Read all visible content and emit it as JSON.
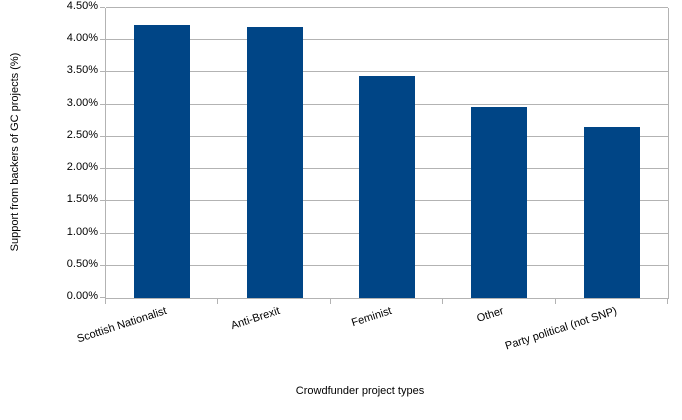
{
  "chart_data": {
    "type": "bar",
    "title": "",
    "xlabel": "Crowdfunder project types",
    "ylabel": "Support from backers of GC projects (%)",
    "categories": [
      "Scottish Nationalist",
      "Anti-Brexit",
      "Feminist",
      "Other",
      "Party political (not SNP)"
    ],
    "values": [
      4.23,
      4.2,
      3.45,
      2.97,
      2.66
    ],
    "ylim": [
      0,
      4.5
    ],
    "ytick_step": 0.5,
    "ytick_labels": [
      "0.00%",
      "0.50%",
      "1.00%",
      "1.50%",
      "2.00%",
      "2.50%",
      "3.00%",
      "3.50%",
      "4.00%",
      "4.50%"
    ],
    "grid": "horizontal gridlines on",
    "legend_position": "none",
    "bar_color": "#004586",
    "grid_color": "#b3b3b3",
    "axis_color": "#b3b3b3",
    "text_color": "#000000",
    "background_color": "#ffffff"
  }
}
